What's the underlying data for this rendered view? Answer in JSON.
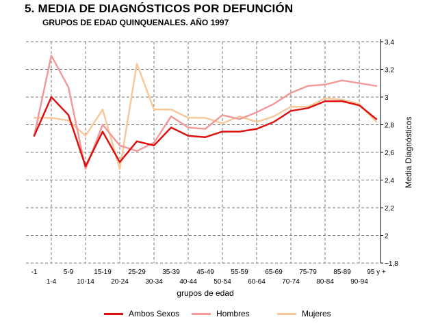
{
  "header": {
    "title": "5. MEDIA DE DIAGNÓSTICOS POR DEFUNCIÓN",
    "subtitle": "GRUPOS DE EDAD QUINQUENALES. AÑO 1997"
  },
  "colors": {
    "Ambos Sexos": "#dd1111",
    "Hombres": "#f29a9a",
    "Mujeres": "#f8c89a",
    "grid": "#777777"
  },
  "chart_data": {
    "type": "line",
    "title": "5. MEDIA DE DIAGNÓSTICOS POR DEFUNCIÓN",
    "subtitle": "GRUPOS DE EDAD QUINQUENALES. AÑO 1997",
    "xlabel": "grupos de edad",
    "ylabel": "Media Diagnósticos",
    "ylim": [
      1.8,
      3.4
    ],
    "yticks": [
      "3,4",
      "3,2",
      "3",
      "2,8",
      "2,6",
      "2,4",
      "2,2",
      "2",
      "1,8"
    ],
    "y_axis_side": "right",
    "grid": true,
    "legend_position": "bottom",
    "categories": [
      "-1",
      "1-4",
      "5-9",
      "10-14",
      "15-19",
      "20-24",
      "25-29",
      "30-34",
      "35-39",
      "40-44",
      "45-49",
      "50-54",
      "55-59",
      "60-64",
      "65-69",
      "70-74",
      "75-79",
      "80-84",
      "85-89",
      "90-94",
      "95 y +"
    ],
    "series": [
      {
        "name": "Ambos Sexos",
        "values": [
          2.72,
          3.0,
          2.87,
          2.5,
          2.75,
          2.53,
          2.68,
          2.65,
          2.78,
          2.72,
          2.71,
          2.75,
          2.75,
          2.77,
          2.82,
          2.9,
          2.92,
          2.97,
          2.97,
          2.94,
          2.84
        ]
      },
      {
        "name": "Hombres",
        "values": [
          2.72,
          3.3,
          3.07,
          2.48,
          2.8,
          2.65,
          2.61,
          2.67,
          2.86,
          2.78,
          2.77,
          2.87,
          2.84,
          2.89,
          2.95,
          3.03,
          3.08,
          3.09,
          3.12,
          3.1,
          3.08
        ]
      },
      {
        "name": "Mujeres",
        "values": [
          2.85,
          2.85,
          2.83,
          2.72,
          2.91,
          2.48,
          3.24,
          2.91,
          2.91,
          2.85,
          2.85,
          2.81,
          2.86,
          2.82,
          2.86,
          2.93,
          2.93,
          2.99,
          2.98,
          2.95,
          2.82
        ]
      }
    ]
  },
  "legend": {
    "items": [
      {
        "label": "Ambos Sexos"
      },
      {
        "label": "Hombres"
      },
      {
        "label": "Mujeres"
      }
    ]
  }
}
